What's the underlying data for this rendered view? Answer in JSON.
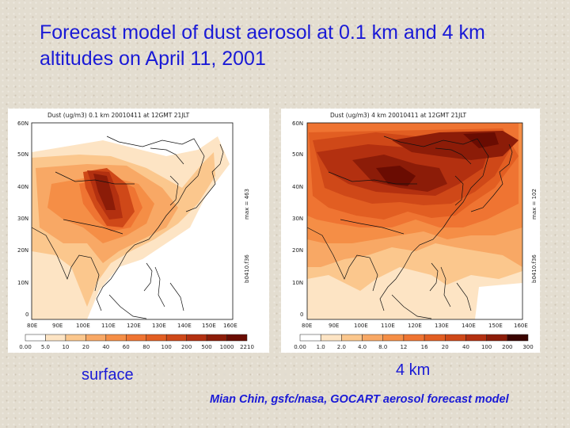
{
  "slide": {
    "title": "Forecast model of dust aerosol at 0.1 km and 4 km altitudes on April 11, 2001",
    "caption_left": "surface",
    "caption_right": "4 km",
    "credit": "Mian Chin, gsfc/nasa, GOCART aerosol forecast model"
  },
  "maps": [
    {
      "title": "Dust (ug/m3) 0.1 km 20010411 at 12GMT 21JLT",
      "max_label": "max = 463",
      "file_label": "b0410.f36",
      "lat_labels": [
        "60N",
        "50N",
        "40N",
        "30N",
        "20N",
        "10N",
        "0"
      ],
      "lon_labels": [
        "80E",
        "90E",
        "100E",
        "110E",
        "120E",
        "130E",
        "140E",
        "150E",
        "160E"
      ],
      "colorbar_labels": [
        "0.00",
        "5.0",
        "10",
        "20",
        "40",
        "60",
        "80",
        "100",
        "200",
        "500",
        "1000",
        "2210"
      ],
      "colorbar_colors": [
        "#ffffff",
        "#fde4c4",
        "#fbc78d",
        "#f8a865",
        "#f58e46",
        "#ef7432",
        "#e25e22",
        "#cf4818",
        "#b33010",
        "#8c1c08",
        "#6a0c02"
      ]
    },
    {
      "title": "Dust (ug/m3) 4 km 20010411 at 12GMT 21JLT",
      "max_label": "max = 102",
      "file_label": "b0410.f36",
      "lat_labels": [
        "60N",
        "50N",
        "40N",
        "30N",
        "20N",
        "10N",
        "0"
      ],
      "lon_labels": [
        "80E",
        "90E",
        "100E",
        "110E",
        "120E",
        "130E",
        "140E",
        "150E",
        "160E"
      ],
      "colorbar_labels": [
        "0.00",
        "1.0",
        "2.0",
        "4.0",
        "8.0",
        "12",
        "16",
        "20",
        "40",
        "100",
        "200",
        "300"
      ],
      "colorbar_colors": [
        "#ffffff",
        "#fde4c4",
        "#fbc78d",
        "#f8a865",
        "#f58e46",
        "#ef7432",
        "#e25e22",
        "#cf4818",
        "#b33010",
        "#8c1c08",
        "#3a0400"
      ]
    }
  ]
}
